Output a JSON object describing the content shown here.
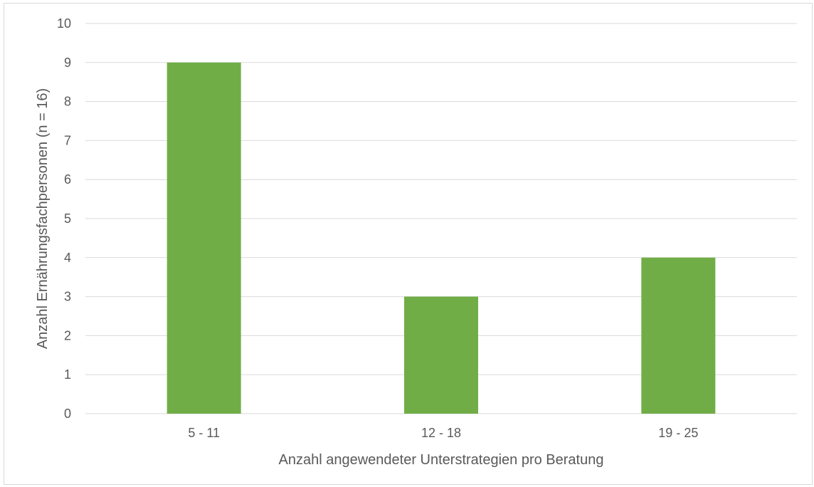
{
  "chart_data": {
    "type": "bar",
    "categories": [
      "5 - 11",
      "12 - 18",
      "19 - 25"
    ],
    "values": [
      9,
      3,
      4
    ],
    "title": "",
    "xlabel": "Anzahl angewendeter Unterstrategien pro Beratung",
    "ylabel": "Anzahl Ernährungsfachpersonen (n = 16)",
    "ylim": [
      0,
      10
    ],
    "yticks": [
      "0",
      "1",
      "2",
      "3",
      "4",
      "5",
      "6",
      "7",
      "8",
      "9",
      "10"
    ],
    "grid": true,
    "legend": "none",
    "bar_color": "#70ad47",
    "grid_color": "#d9d9d9",
    "text_color": "#595959"
  }
}
